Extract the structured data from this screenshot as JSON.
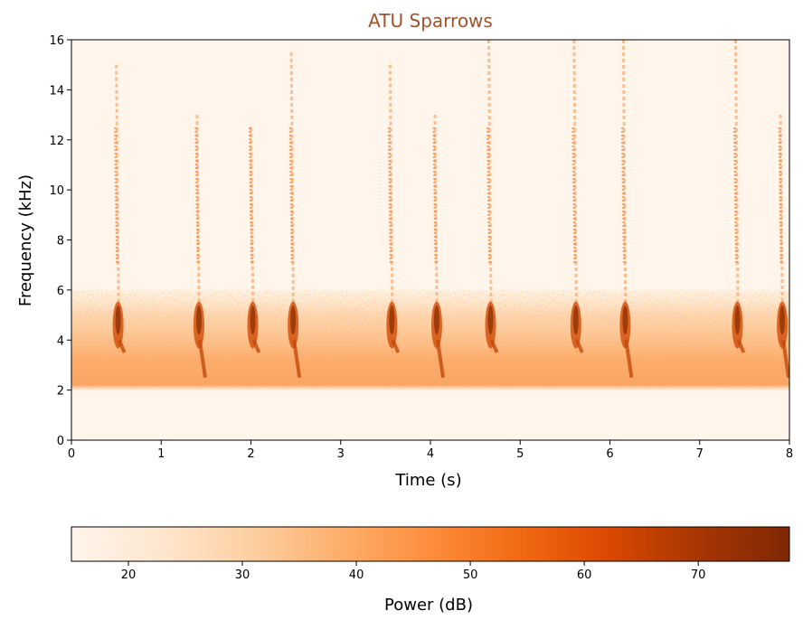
{
  "chart_data": {
    "type": "heatmap",
    "title": "ATU Sparrows",
    "xlabel": "Time (s)",
    "ylabel": "Frequency (kHz)",
    "xlim": [
      0,
      8
    ],
    "ylim": [
      0,
      16
    ],
    "xticks": [
      0,
      1,
      2,
      3,
      4,
      5,
      6,
      7,
      8
    ],
    "yticks": [
      0,
      2,
      4,
      6,
      8,
      10,
      12,
      14,
      16
    ],
    "grid": false,
    "colormap": "Oranges",
    "noise_band_khz": [
      2,
      6
    ],
    "calls": [
      {
        "time_s": 0.5,
        "freq_khz": [
          3.5,
          15
        ]
      },
      {
        "time_s": 1.4,
        "freq_khz": [
          2.5,
          13
        ]
      },
      {
        "time_s": 2.0,
        "freq_khz": [
          3.5,
          12.5
        ]
      },
      {
        "time_s": 2.45,
        "freq_khz": [
          2.5,
          15.5
        ]
      },
      {
        "time_s": 3.55,
        "freq_khz": [
          3.5,
          15
        ]
      },
      {
        "time_s": 4.05,
        "freq_khz": [
          2.5,
          13
        ]
      },
      {
        "time_s": 4.65,
        "freq_khz": [
          3.5,
          16
        ]
      },
      {
        "time_s": 5.6,
        "freq_khz": [
          3.5,
          16
        ]
      },
      {
        "time_s": 6.15,
        "freq_khz": [
          2.5,
          16
        ]
      },
      {
        "time_s": 7.4,
        "freq_khz": [
          3.5,
          16
        ]
      },
      {
        "time_s": 7.9,
        "freq_khz": [
          2.5,
          13
        ]
      }
    ],
    "colorbar": {
      "label": "Power (dB)",
      "range": [
        15,
        78
      ],
      "ticks": [
        20,
        30,
        40,
        50,
        60,
        70
      ],
      "orientation": "horizontal"
    },
    "colors": {
      "title": "#a0522d",
      "low": "#fff5eb",
      "high": "#7f2704"
    }
  }
}
